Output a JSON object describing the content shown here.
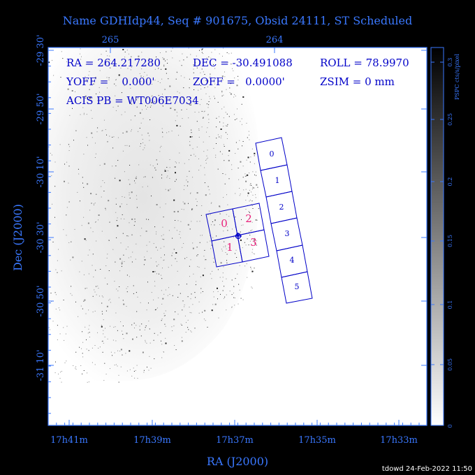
{
  "title": "Name GDHIdp44, Seq # 901675, Obsid 24111, ST Scheduled",
  "info": {
    "ra": "RA = 264.217280",
    "dec": "DEC = -30.491088",
    "roll": "ROLL = 78.9970",
    "yoff": "YOFF =    0.000'",
    "zoff": "ZOFF =   0.0000'",
    "zsim": "ZSIM = 0 mm",
    "acis": "ACIS PB = WT006E7034"
  },
  "axes": {
    "x_label": "RA (J2000)",
    "y_label": "Dec (J2000)",
    "x_ticks_bottom": [
      "17h41m",
      "17h39m",
      "17h37m",
      "17h35m",
      "17h33m"
    ],
    "x_ticks_top": [
      "265",
      "264"
    ],
    "y_ticks": [
      "-29 30'",
      "-29 50'",
      "-30 10'",
      "-30 30'",
      "-30 50'",
      "-31 10'"
    ]
  },
  "colorbar": {
    "label": "PSPC cts/s/pixel",
    "ticks": [
      "0.3",
      "0.25",
      "0.2",
      "0.15",
      "0.1",
      "0.05",
      "0"
    ]
  },
  "acis_i_chips": [
    "0",
    "1",
    "2",
    "3"
  ],
  "acis_s_chips": [
    "0",
    "1",
    "2",
    "3",
    "4",
    "5"
  ],
  "footer": "tdowd 24-Feb-2022 11:50",
  "colors": {
    "frame": "#3a78ff",
    "chips": "#0000c8",
    "acis_i_labels": "#e8207a"
  }
}
